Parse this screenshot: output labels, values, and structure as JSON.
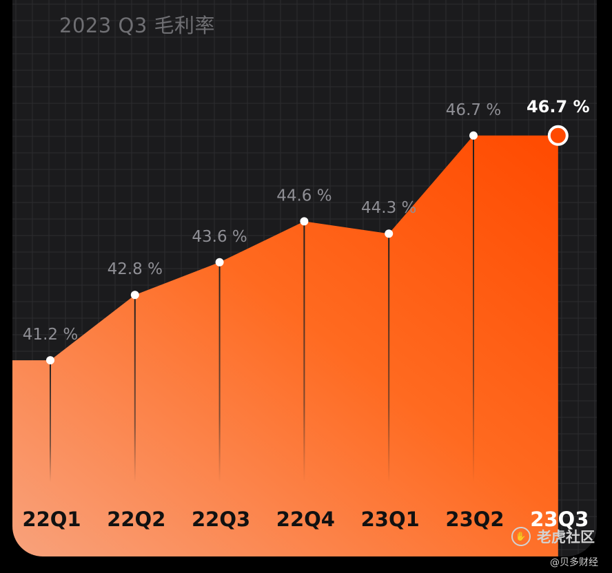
{
  "chart_data": {
    "type": "area",
    "title": "2023 Q3 毛利率",
    "categories": [
      "22Q1",
      "22Q2",
      "22Q3",
      "22Q4",
      "23Q1",
      "23Q2",
      "23Q3"
    ],
    "series": [
      {
        "values": [
          41.2,
          42.8,
          43.6,
          44.6,
          44.3,
          46.7,
          46.7
        ],
        "labels": [
          "41.2 %",
          "42.8 %",
          "43.6 %",
          "44.6 %",
          "44.3 %",
          "46.7 %",
          "46.7 %"
        ]
      }
    ],
    "ylim": [
      36.4,
      48.5
    ],
    "grid": true,
    "highlight_category": "23Q3",
    "colors": {
      "fill_top": "#ff4a00",
      "fill_bottom": "#f8a27c",
      "label": "#8f8f95",
      "highlight_label": "#ffffff",
      "category_label": "#111111",
      "highlight_category_label": "#ffffff",
      "marker": "#ffffff",
      "highlight_marker": "#ff4a00",
      "background": "#1b1b1d"
    }
  },
  "watermark": {
    "icon": "tiger-paw-icon",
    "text": "老虎社区",
    "credit": "@贝多财经"
  }
}
